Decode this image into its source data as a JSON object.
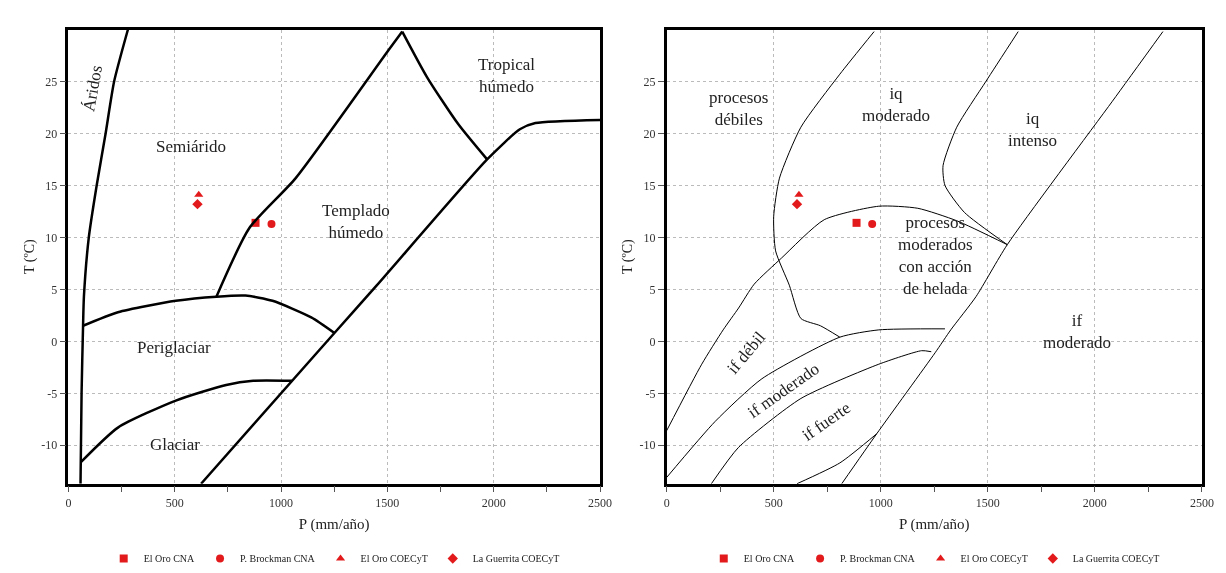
{
  "chart_data": [
    {
      "type": "scatter",
      "xlabel": "P (mm/año)",
      "ylabel": "T (ºC)",
      "xlim": [
        0,
        2500
      ],
      "ylim": [
        -13.7,
        30
      ],
      "xticks": [
        0,
        {
          "value": 250,
          "label": null
        },
        500,
        {
          "value": 750,
          "label": null
        },
        1000,
        {
          "value": 1250,
          "label": null
        },
        1500,
        {
          "value": 1750,
          "label": null
        },
        2000,
        {
          "value": 2250,
          "label": null
        },
        2500
      ],
      "yticks": [
        -10,
        -5,
        0,
        5,
        10,
        15,
        20,
        25
      ],
      "grid": true,
      "legend": "bottom",
      "series": [
        {
          "name": "El Oro CNA",
          "color": "#e31a1c",
          "marker": "square",
          "x": [
            880
          ],
          "values": [
            11.4
          ]
        },
        {
          "name": "P. Brockman CNA",
          "color": "#e31a1c",
          "marker": "circle",
          "x": [
            955
          ],
          "values": [
            11.3
          ]
        },
        {
          "name": "El Oro COECyT",
          "color": "#e31a1c",
          "marker": "triangle",
          "x": [
            613
          ],
          "values": [
            14.1
          ]
        },
        {
          "name": "La Guerrita COECyT",
          "color": "#e31a1c",
          "marker": "diamond",
          "x": [
            607
          ],
          "values": [
            13.2
          ]
        },
        {
          "type": "line",
          "color": "#000000",
          "marker": "none",
          "x": [
            280,
            215,
            175,
            133,
            96,
            73,
            69,
            62,
            57
          ],
          "values": [
            30,
            25,
            20,
            15,
            10,
            4.3,
            1.5,
            -5,
            -13.7
          ]
        },
        {
          "type": "line",
          "color": "#000000",
          "marker": "none",
          "x": [
            696,
            851,
            1069,
            1505,
            1570
          ],
          "values": [
            4.3,
            10.9,
            15.7,
            28,
            29.8
          ]
        },
        {
          "type": "line",
          "color": "#000000",
          "marker": "none",
          "x": [
            1570,
            1687,
            1833,
            1969
          ],
          "values": [
            29.8,
            25.4,
            20.9,
            17.5
          ]
        },
        {
          "type": "line",
          "color": "#000000",
          "marker": "none",
          "x": [
            624,
            1251,
            1451,
            1969,
            2123,
            2196,
            2500
          ],
          "values": [
            -13.7,
            0.8,
            5.4,
            17.5,
            20.4,
            21,
            21.3
          ]
        },
        {
          "type": "line",
          "color": "#000000",
          "marker": "none",
          "x": [
            69,
            233,
            505,
            696,
            833,
            960,
            1142,
            1251
          ],
          "values": [
            1.5,
            2.8,
            3.9,
            4.3,
            4.4,
            3.9,
            2.3,
            0.8
          ]
        },
        {
          "type": "line",
          "color": "#000000",
          "marker": "none",
          "x": [
            60,
            233,
            505,
            742,
            869,
            1051
          ],
          "values": [
            -11.6,
            -8.3,
            -5.7,
            -4.2,
            -3.8,
            -3.8
          ]
        }
      ],
      "annotations": [
        "Áridos",
        "Semiárido",
        "Tropical\nhúmedo",
        "Templado\nhúmedo",
        "Periglaciar",
        "Glaciar"
      ]
    },
    {
      "type": "scatter",
      "xlabel": "P (mm/año)",
      "ylabel": "T (ºC)",
      "xlim": [
        0,
        2500
      ],
      "ylim": [
        -13.7,
        30
      ],
      "xticks": [
        0,
        {
          "value": 250,
          "label": null
        },
        500,
        {
          "value": 750,
          "label": null
        },
        1000,
        {
          "value": 1250,
          "label": null
        },
        1500,
        {
          "value": 1750,
          "label": null
        },
        2000,
        {
          "value": 2250,
          "label": null
        },
        2500
      ],
      "yticks": [
        -10,
        -5,
        0,
        5,
        10,
        15,
        20,
        25
      ],
      "grid": true,
      "legend": "bottom",
      "series": [
        {
          "name": "El Oro CNA",
          "color": "#e31a1c",
          "marker": "square",
          "x": [
            887
          ],
          "values": [
            11.4
          ]
        },
        {
          "name": "P. Brockman CNA",
          "color": "#e31a1c",
          "marker": "circle",
          "x": [
            960
          ],
          "values": [
            11.3
          ]
        },
        {
          "name": "El Oro COECyT",
          "color": "#e31a1c",
          "marker": "triangle",
          "x": [
            618
          ],
          "values": [
            14.1
          ]
        },
        {
          "name": "La Guerrita COECyT",
          "color": "#e31a1c",
          "marker": "diamond",
          "x": [
            609
          ],
          "values": [
            13.2
          ]
        },
        {
          "type": "line",
          "color": "#000000",
          "marker": "none",
          "x": [
            969,
            809,
            627,
            527,
            500,
            509,
            573,
            627,
            718,
            809
          ],
          "values": [
            29.8,
            25.7,
            20.6,
            15.7,
            12,
            8.7,
            5.4,
            2.2,
            1.5,
            0.4
          ]
        },
        {
          "type": "line",
          "color": "#000000",
          "marker": "none",
          "x": [
            1642,
            1491,
            1355,
            1291,
            1300,
            1391,
            1591
          ],
          "values": [
            29.8,
            25,
            20.6,
            16.9,
            15,
            12.4,
            9.3
          ]
        },
        {
          "type": "line",
          "color": "#000000",
          "marker": "none",
          "x": [
            2318,
            2082,
            1591,
            1445,
            1327,
            1254,
            981,
            818
          ],
          "values": [
            29.8,
            23.1,
            9.3,
            4.3,
            1.1,
            -1.1,
            -8.9,
            -13.7
          ]
        },
        {
          "type": "line",
          "color": "#000000",
          "marker": "none",
          "x": [
            0,
            164,
            264,
            336,
            409,
            536,
            736,
            991,
            1173,
            1355,
            1591
          ],
          "values": [
            -8.6,
            -2.2,
            1.1,
            3.2,
            5.5,
            8,
            11.7,
            13,
            12.8,
            11.6,
            9.3
          ]
        },
        {
          "type": "line",
          "color": "#000000",
          "marker": "none",
          "x": [
            0,
            227,
            445,
            809,
            991,
            1300
          ],
          "values": [
            -13.1,
            -7.7,
            -3.6,
            0.4,
            1.1,
            1.2
          ]
        },
        {
          "type": "line",
          "color": "#000000",
          "marker": "none",
          "x": [
            209,
            336,
            627,
            991,
            1191,
            1236
          ],
          "values": [
            -13.7,
            -10.2,
            -5.5,
            -2.2,
            -0.9,
            -1.0
          ]
        },
        {
          "type": "line",
          "color": "#000000",
          "marker": "none",
          "x": [
            609,
            809,
            981
          ],
          "values": [
            -13.7,
            -11.7,
            -8.9
          ]
        }
      ],
      "annotations": [
        "procesos\ndébiles",
        "iq\nmoderado",
        "iq\nintenso",
        "procesos\nmoderados\ncon acción\nde helada",
        "if\nmoderado",
        "if débil",
        "if moderado",
        "if fuerte"
      ]
    }
  ]
}
